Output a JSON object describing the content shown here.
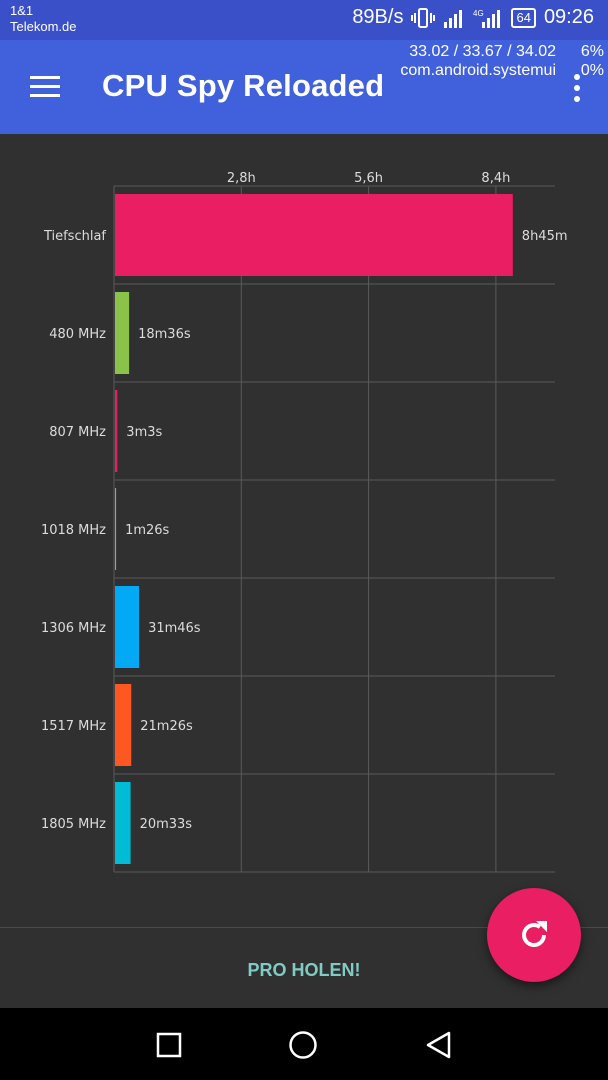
{
  "status_bar": {
    "carrier_line1": "1&1",
    "carrier_line2": "Telekom.de",
    "net_speed": "89B/s",
    "battery": "64",
    "time": "09:26",
    "network_type": "4G",
    "icons": [
      "vibrate-icon",
      "signal-icon",
      "signal-4g-icon",
      "battery-icon"
    ]
  },
  "app_bar": {
    "title": "CPU Spy Reloaded",
    "load_avg": "33.02 / 33.67 / 34.02",
    "top_process": "com.android.systemui",
    "cpu_pct_1": "6%",
    "cpu_pct_2": "0%",
    "icons": [
      "hamburger-menu-icon",
      "more-vert-icon"
    ]
  },
  "chart_data": {
    "type": "bar",
    "orientation": "horizontal",
    "categories": [
      "Tiefschlaf",
      "480 MHz",
      "807 MHz",
      "1018 MHz",
      "1306 MHz",
      "1517 MHz",
      "1805 MHz"
    ],
    "values_hours": [
      8.75,
      0.31,
      0.0508,
      0.0239,
      0.5294,
      0.3572,
      0.3425
    ],
    "value_labels": [
      "8h45m",
      "18m36s",
      "3m3s",
      "1m26s",
      "31m46s",
      "21m26s",
      "20m33s"
    ],
    "colors": [
      "#e91e63",
      "#8bc34a",
      "#e91e63",
      "#9e9e9e",
      "#03a9f4",
      "#ff5722",
      "#00bcd4"
    ],
    "x_ticks": [
      2.8,
      5.6,
      8.4
    ],
    "x_tick_labels": [
      "2,8h",
      "5,6h",
      "8,4h"
    ],
    "xlim": [
      0,
      9.7
    ],
    "grid": true
  },
  "footer": {
    "pro_label": "PRO HOLEN!"
  },
  "fab": {
    "icon": "refresh-icon"
  },
  "nav_bar": {
    "icons": [
      "recents-square-icon",
      "home-circle-icon",
      "back-triangle-icon"
    ]
  },
  "colors": {
    "status_bar": "#3a50c8",
    "app_bar": "#4160dc",
    "background": "#303030",
    "accent": "#e91e63",
    "pro_text": "#80cbc4"
  }
}
